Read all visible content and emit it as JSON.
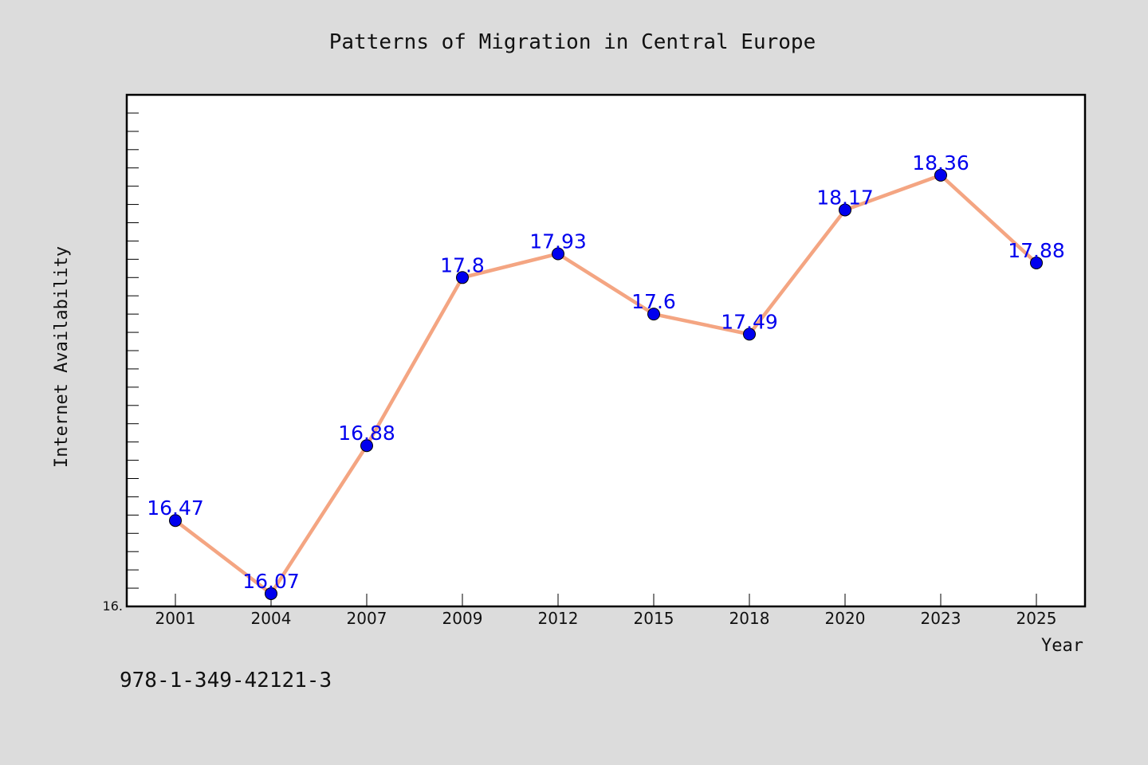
{
  "chart_data": {
    "type": "line",
    "title": "Patterns of Migration in Central Europe",
    "xlabel": "Year",
    "ylabel": "Internet Availability",
    "categories": [
      "2001",
      "2004",
      "2007",
      "2009",
      "2012",
      "2015",
      "2018",
      "2020",
      "2023",
      "2025"
    ],
    "series": [
      {
        "values": [
          16.47,
          16.07,
          16.88,
          17.8,
          17.93,
          17.6,
          17.49,
          18.17,
          18.36,
          17.88
        ],
        "data_labels": [
          "16.47",
          "16.07",
          "16.88",
          "17.8",
          "17.93",
          "17.6",
          "17.49",
          "18.17",
          "18.36",
          "17.88"
        ],
        "line_color": "#f4a582",
        "marker_color": "#0000ee"
      }
    ],
    "ylim": [
      16.0,
      18.8
    ],
    "ytick_labels": [
      "16."
    ],
    "grid": false,
    "legend": false
  },
  "footer": {
    "isbn": "978-1-349-42121-3"
  },
  "colors": {
    "background": "#dcdcdc",
    "plot_background": "#ffffff",
    "line": "#f4a582",
    "marker": "#0000ee",
    "data_label": "#0000ee"
  }
}
